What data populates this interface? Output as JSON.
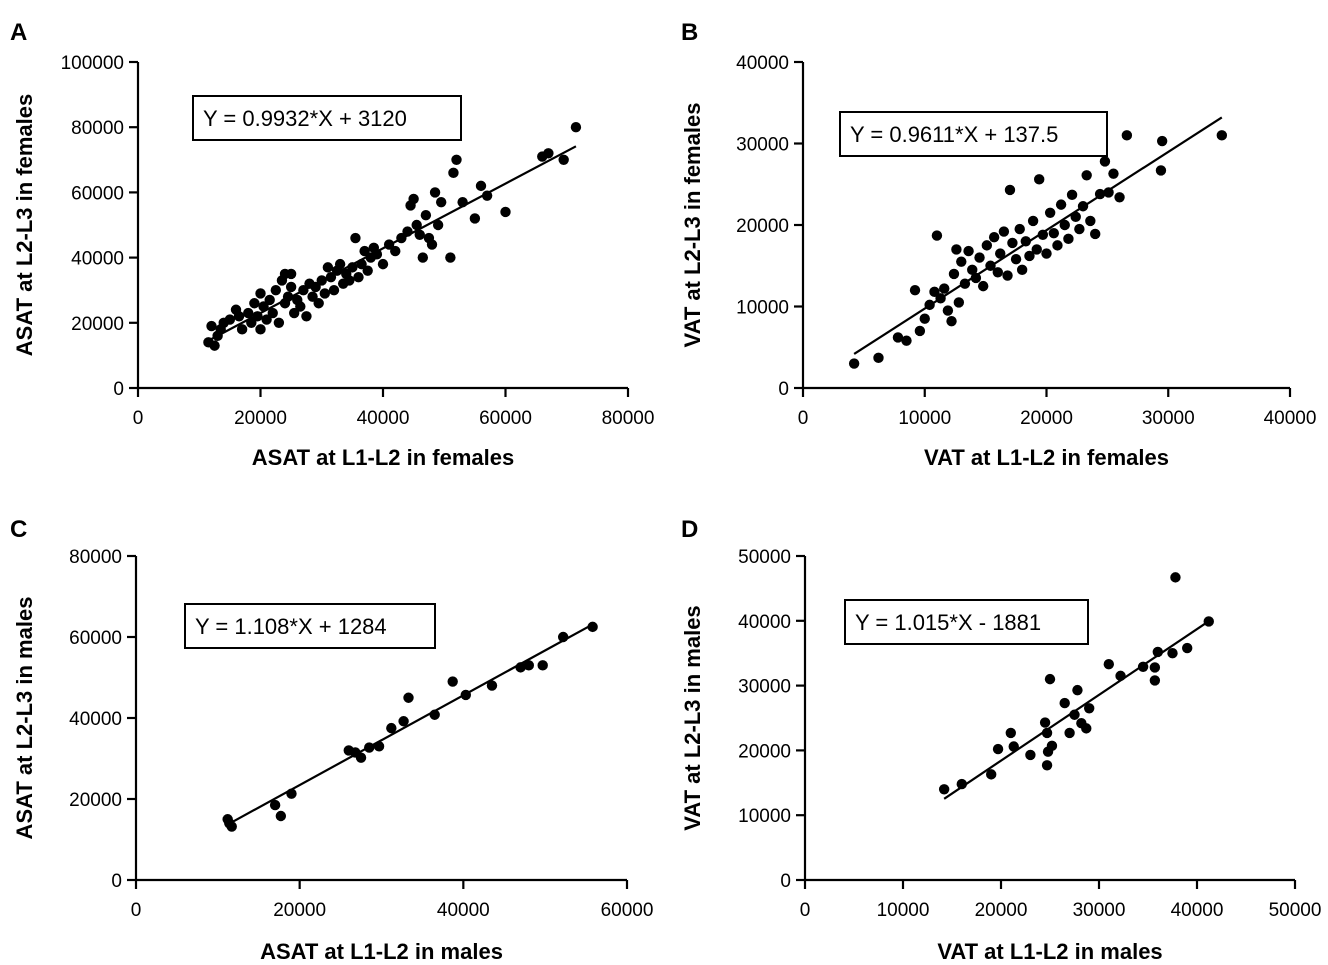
{
  "chart_data": [
    {
      "panel": "A",
      "type": "scatter",
      "xlabel": "ASAT at L1-L2 in females",
      "ylabel": "ASAT at L2-L3 in females",
      "xlim": [
        0,
        80000
      ],
      "ylim": [
        0,
        100000
      ],
      "xticks": [
        "0",
        "20000",
        "40000",
        "60000",
        "80000"
      ],
      "yticks": [
        "0",
        "20000",
        "40000",
        "60000",
        "80000",
        "100000"
      ],
      "equation": "Y = 0.9932*X + 3120",
      "fit": {
        "slope": 0.9932,
        "intercept": 3120,
        "x_range": [
          11500,
          71500
        ]
      },
      "points": [
        [
          11500,
          14000
        ],
        [
          12000,
          19000
        ],
        [
          12500,
          13000
        ],
        [
          13000,
          16000
        ],
        [
          13500,
          18000
        ],
        [
          14000,
          20000
        ],
        [
          15000,
          21000
        ],
        [
          16000,
          24000
        ],
        [
          16500,
          22000
        ],
        [
          17000,
          18000
        ],
        [
          18000,
          23000
        ],
        [
          18500,
          20000
        ],
        [
          19000,
          26000
        ],
        [
          19500,
          22000
        ],
        [
          20000,
          29000
        ],
        [
          20000,
          18000
        ],
        [
          20500,
          25000
        ],
        [
          21000,
          21000
        ],
        [
          21500,
          27000
        ],
        [
          22000,
          23000
        ],
        [
          22500,
          30000
        ],
        [
          23000,
          20000
        ],
        [
          23500,
          33000
        ],
        [
          24000,
          26000
        ],
        [
          24000,
          35000
        ],
        [
          24500,
          28000
        ],
        [
          25000,
          31000
        ],
        [
          25000,
          35000
        ],
        [
          25500,
          23000
        ],
        [
          26000,
          27000
        ],
        [
          26500,
          25000
        ],
        [
          27000,
          30000
        ],
        [
          27500,
          22000
        ],
        [
          28000,
          32000
        ],
        [
          28500,
          28000
        ],
        [
          29000,
          31000
        ],
        [
          29500,
          26000
        ],
        [
          30000,
          33000
        ],
        [
          30500,
          29000
        ],
        [
          31000,
          37000
        ],
        [
          31500,
          34000
        ],
        [
          32000,
          30000
        ],
        [
          32500,
          36000
        ],
        [
          33000,
          38000
        ],
        [
          33500,
          32000
        ],
        [
          34000,
          35000
        ],
        [
          34500,
          33000
        ],
        [
          35000,
          37000
        ],
        [
          35500,
          46000
        ],
        [
          36000,
          34000
        ],
        [
          36500,
          38000
        ],
        [
          37000,
          42000
        ],
        [
          37500,
          36000
        ],
        [
          38000,
          40000
        ],
        [
          38500,
          43000
        ],
        [
          39000,
          41000
        ],
        [
          40000,
          38000
        ],
        [
          41000,
          44000
        ],
        [
          42000,
          42000
        ],
        [
          43000,
          46000
        ],
        [
          44000,
          48000
        ],
        [
          44500,
          56000
        ],
        [
          45000,
          58000
        ],
        [
          45500,
          50000
        ],
        [
          46000,
          47000
        ],
        [
          46500,
          40000
        ],
        [
          47000,
          53000
        ],
        [
          47500,
          46000
        ],
        [
          48000,
          44000
        ],
        [
          48500,
          60000
        ],
        [
          49000,
          50000
        ],
        [
          49500,
          57000
        ],
        [
          51000,
          40000
        ],
        [
          51500,
          66000
        ],
        [
          52000,
          70000
        ],
        [
          53000,
          57000
        ],
        [
          55000,
          52000
        ],
        [
          56000,
          62000
        ],
        [
          57000,
          59000
        ],
        [
          60000,
          54000
        ],
        [
          66000,
          71000
        ],
        [
          67000,
          72000
        ],
        [
          69500,
          70000
        ],
        [
          71500,
          80000
        ]
      ]
    },
    {
      "panel": "B",
      "type": "scatter",
      "xlabel": "VAT at L1-L2 in females",
      "ylabel": "VAT at L2-L3 in females",
      "xlim": [
        0,
        40000
      ],
      "ylim": [
        0,
        40000
      ],
      "xticks": [
        "0",
        "10000",
        "20000",
        "30000",
        "40000"
      ],
      "yticks": [
        "0",
        "10000",
        "20000",
        "30000",
        "40000"
      ],
      "equation": "Y = 0.9611*X + 137.5",
      "fit": {
        "slope": 0.9611,
        "intercept": 137.5,
        "x_range": [
          4200,
          34400
        ]
      },
      "points": [
        [
          4200,
          3000
        ],
        [
          6200,
          3700
        ],
        [
          7800,
          6200
        ],
        [
          8500,
          5800
        ],
        [
          9200,
          12000
        ],
        [
          9600,
          7000
        ],
        [
          10000,
          8500
        ],
        [
          10400,
          10200
        ],
        [
          10800,
          11800
        ],
        [
          11000,
          18700
        ],
        [
          11300,
          11000
        ],
        [
          11600,
          12200
        ],
        [
          11900,
          9500
        ],
        [
          12200,
          8200
        ],
        [
          12400,
          14000
        ],
        [
          12600,
          17000
        ],
        [
          12800,
          10500
        ],
        [
          13000,
          15500
        ],
        [
          13300,
          12800
        ],
        [
          13600,
          16800
        ],
        [
          13900,
          14500
        ],
        [
          14200,
          13500
        ],
        [
          14500,
          16000
        ],
        [
          14800,
          12500
        ],
        [
          15100,
          17500
        ],
        [
          15400,
          15000
        ],
        [
          15700,
          18500
        ],
        [
          16000,
          14200
        ],
        [
          16200,
          16500
        ],
        [
          16500,
          19200
        ],
        [
          16800,
          13800
        ],
        [
          17000,
          24300
        ],
        [
          17200,
          17800
        ],
        [
          17500,
          15800
        ],
        [
          17800,
          19500
        ],
        [
          18000,
          14500
        ],
        [
          18300,
          18000
        ],
        [
          18600,
          16200
        ],
        [
          18900,
          20500
        ],
        [
          19200,
          17000
        ],
        [
          19400,
          25600
        ],
        [
          19700,
          18800
        ],
        [
          20000,
          16500
        ],
        [
          20300,
          21500
        ],
        [
          20600,
          19000
        ],
        [
          20900,
          17500
        ],
        [
          21200,
          22500
        ],
        [
          21500,
          20000
        ],
        [
          21800,
          18300
        ],
        [
          22100,
          23700
        ],
        [
          22400,
          21000
        ],
        [
          22700,
          19500
        ],
        [
          23000,
          22300
        ],
        [
          23300,
          26100
        ],
        [
          23600,
          20500
        ],
        [
          24000,
          18900
        ],
        [
          24400,
          23800
        ],
        [
          24800,
          27800
        ],
        [
          25100,
          24000
        ],
        [
          25500,
          26300
        ],
        [
          26000,
          23400
        ],
        [
          26600,
          31000
        ],
        [
          29500,
          30300
        ],
        [
          29400,
          26700
        ],
        [
          34400,
          31000
        ]
      ]
    },
    {
      "panel": "C",
      "type": "scatter",
      "xlabel": "ASAT at L1-L2 in males",
      "ylabel": "ASAT at L2-L3 in males",
      "xlim": [
        0,
        60000
      ],
      "ylim": [
        0,
        80000
      ],
      "xticks": [
        "0",
        "20000",
        "40000",
        "60000"
      ],
      "yticks": [
        "0",
        "20000",
        "40000",
        "60000",
        "80000"
      ],
      "equation": "Y = 1.108*X + 1284",
      "fit": {
        "slope": 1.108,
        "intercept": 1284,
        "x_range": [
          11200,
          55800
        ]
      },
      "points": [
        [
          11200,
          15000
        ],
        [
          11400,
          14000
        ],
        [
          11700,
          13200
        ],
        [
          17000,
          18500
        ],
        [
          17700,
          15800
        ],
        [
          19000,
          21300
        ],
        [
          26000,
          32000
        ],
        [
          26800,
          31500
        ],
        [
          27500,
          30200
        ],
        [
          28500,
          32700
        ],
        [
          29700,
          33000
        ],
        [
          31200,
          37500
        ],
        [
          32700,
          39200
        ],
        [
          33300,
          45000
        ],
        [
          36500,
          40800
        ],
        [
          38700,
          49000
        ],
        [
          40300,
          45700
        ],
        [
          43500,
          48000
        ],
        [
          47000,
          52500
        ],
        [
          48000,
          53000
        ],
        [
          49700,
          53000
        ],
        [
          52200,
          60000
        ],
        [
          55800,
          62500
        ]
      ]
    },
    {
      "panel": "D",
      "type": "scatter",
      "xlabel": "VAT at L1-L2 in males",
      "ylabel": "VAT at L2-L3 in males",
      "xlim": [
        0,
        50000
      ],
      "ylim": [
        0,
        50000
      ],
      "xticks": [
        "0",
        "10000",
        "20000",
        "30000",
        "40000",
        "50000"
      ],
      "yticks": [
        "0",
        "10000",
        "20000",
        "30000",
        "40000",
        "50000"
      ],
      "equation": "Y = 1.015*X - 1881",
      "fit": {
        "slope": 1.015,
        "intercept": -1881,
        "x_range": [
          14200,
          41200
        ]
      },
      "points": [
        [
          14200,
          14000
        ],
        [
          16000,
          14800
        ],
        [
          19000,
          16300
        ],
        [
          19700,
          20200
        ],
        [
          21000,
          22700
        ],
        [
          21300,
          20600
        ],
        [
          23000,
          19300
        ],
        [
          24500,
          24300
        ],
        [
          24700,
          17700
        ],
        [
          24700,
          22700
        ],
        [
          24800,
          19800
        ],
        [
          25000,
          31000
        ],
        [
          25200,
          20700
        ],
        [
          26500,
          27300
        ],
        [
          27000,
          22700
        ],
        [
          27500,
          25500
        ],
        [
          27800,
          29300
        ],
        [
          28200,
          24200
        ],
        [
          28700,
          23400
        ],
        [
          29000,
          26500
        ],
        [
          31000,
          33300
        ],
        [
          32200,
          31500
        ],
        [
          34500,
          32900
        ],
        [
          35700,
          30800
        ],
        [
          35700,
          32800
        ],
        [
          36000,
          35200
        ],
        [
          37500,
          35000
        ],
        [
          37800,
          46700
        ],
        [
          39000,
          35800
        ],
        [
          41200,
          39900
        ]
      ]
    }
  ]
}
